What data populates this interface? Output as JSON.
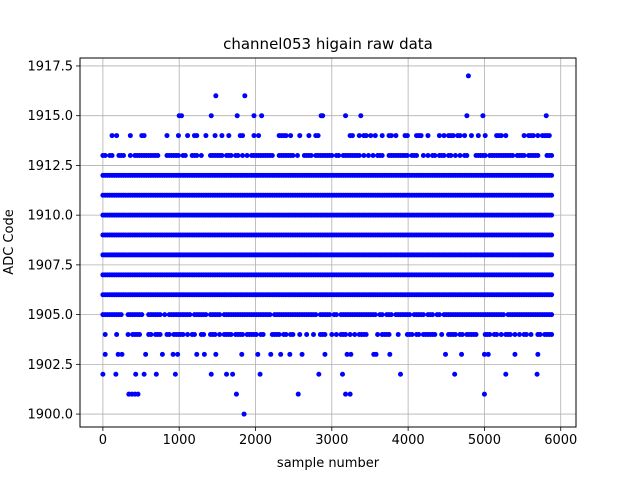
{
  "chart_data": {
    "type": "scatter",
    "title": "channel053 higain raw data",
    "xlabel": "sample number",
    "ylabel": "ADC Code",
    "xlim": [
      -300,
      6200
    ],
    "ylim": [
      1899.35,
      1917.9
    ],
    "xticks": [
      0,
      1000,
      2000,
      3000,
      4000,
      5000,
      6000
    ],
    "yticks": [
      1900.0,
      1902.5,
      1905.0,
      1907.5,
      1910.0,
      1912.5,
      1915.0,
      1917.5
    ],
    "xtick_labels": [
      "0",
      "1000",
      "2000",
      "3000",
      "4000",
      "5000",
      "6000"
    ],
    "ytick_labels": [
      "1900.0",
      "1902.5",
      "1905.0",
      "1907.5",
      "1910.0",
      "1912.5",
      "1915.0",
      "1917.5"
    ],
    "grid": true,
    "marker_color": "#0000ff",
    "sample_range": [
      0,
      5900
    ],
    "dense_levels": [
      1904,
      1905,
      1906,
      1907,
      1908,
      1909,
      1910,
      1911,
      1912,
      1913,
      1914
    ],
    "sparse_points": [
      {
        "x": 0,
        "y": 1902
      },
      {
        "x": 30,
        "y": 1903
      },
      {
        "x": 170,
        "y": 1902
      },
      {
        "x": 200,
        "y": 1903
      },
      {
        "x": 250,
        "y": 1903
      },
      {
        "x": 340,
        "y": 1901
      },
      {
        "x": 380,
        "y": 1901
      },
      {
        "x": 420,
        "y": 1901
      },
      {
        "x": 430,
        "y": 1902
      },
      {
        "x": 460,
        "y": 1901
      },
      {
        "x": 540,
        "y": 1902
      },
      {
        "x": 560,
        "y": 1903
      },
      {
        "x": 700,
        "y": 1902
      },
      {
        "x": 780,
        "y": 1903
      },
      {
        "x": 920,
        "y": 1903
      },
      {
        "x": 950,
        "y": 1902
      },
      {
        "x": 980,
        "y": 1903
      },
      {
        "x": 1230,
        "y": 1903
      },
      {
        "x": 1330,
        "y": 1903
      },
      {
        "x": 1420,
        "y": 1902
      },
      {
        "x": 1480,
        "y": 1903
      },
      {
        "x": 1620,
        "y": 1902
      },
      {
        "x": 1700,
        "y": 1902
      },
      {
        "x": 1750,
        "y": 1901
      },
      {
        "x": 1820,
        "y": 1903
      },
      {
        "x": 2030,
        "y": 1903
      },
      {
        "x": 2060,
        "y": 1902
      },
      {
        "x": 2200,
        "y": 1903
      },
      {
        "x": 2330,
        "y": 1903
      },
      {
        "x": 2450,
        "y": 1903
      },
      {
        "x": 2560,
        "y": 1901
      },
      {
        "x": 2610,
        "y": 1903
      },
      {
        "x": 2830,
        "y": 1902
      },
      {
        "x": 2910,
        "y": 1903
      },
      {
        "x": 3140,
        "y": 1902
      },
      {
        "x": 3180,
        "y": 1901
      },
      {
        "x": 3200,
        "y": 1903
      },
      {
        "x": 3240,
        "y": 1901
      },
      {
        "x": 3250,
        "y": 1903
      },
      {
        "x": 3550,
        "y": 1903
      },
      {
        "x": 3580,
        "y": 1903
      },
      {
        "x": 3760,
        "y": 1903
      },
      {
        "x": 3900,
        "y": 1902
      },
      {
        "x": 4490,
        "y": 1903
      },
      {
        "x": 4610,
        "y": 1902
      },
      {
        "x": 4700,
        "y": 1903
      },
      {
        "x": 5000,
        "y": 1901
      },
      {
        "x": 5000,
        "y": 1903
      },
      {
        "x": 5050,
        "y": 1903
      },
      {
        "x": 5280,
        "y": 1902
      },
      {
        "x": 5400,
        "y": 1903
      },
      {
        "x": 5690,
        "y": 1902
      },
      {
        "x": 5700,
        "y": 1903
      },
      {
        "x": 1000,
        "y": 1915
      },
      {
        "x": 1030,
        "y": 1915
      },
      {
        "x": 1420,
        "y": 1915
      },
      {
        "x": 1480,
        "y": 1916
      },
      {
        "x": 1760,
        "y": 1915
      },
      {
        "x": 1860,
        "y": 1916
      },
      {
        "x": 1980,
        "y": 1915
      },
      {
        "x": 2080,
        "y": 1915
      },
      {
        "x": 2860,
        "y": 1915
      },
      {
        "x": 2880,
        "y": 1915
      },
      {
        "x": 3180,
        "y": 1915
      },
      {
        "x": 3380,
        "y": 1915
      },
      {
        "x": 4770,
        "y": 1915
      },
      {
        "x": 4980,
        "y": 1915
      },
      {
        "x": 5810,
        "y": 1915
      },
      {
        "x": 1850,
        "y": 1900
      },
      {
        "x": 4790,
        "y": 1917
      }
    ]
  }
}
